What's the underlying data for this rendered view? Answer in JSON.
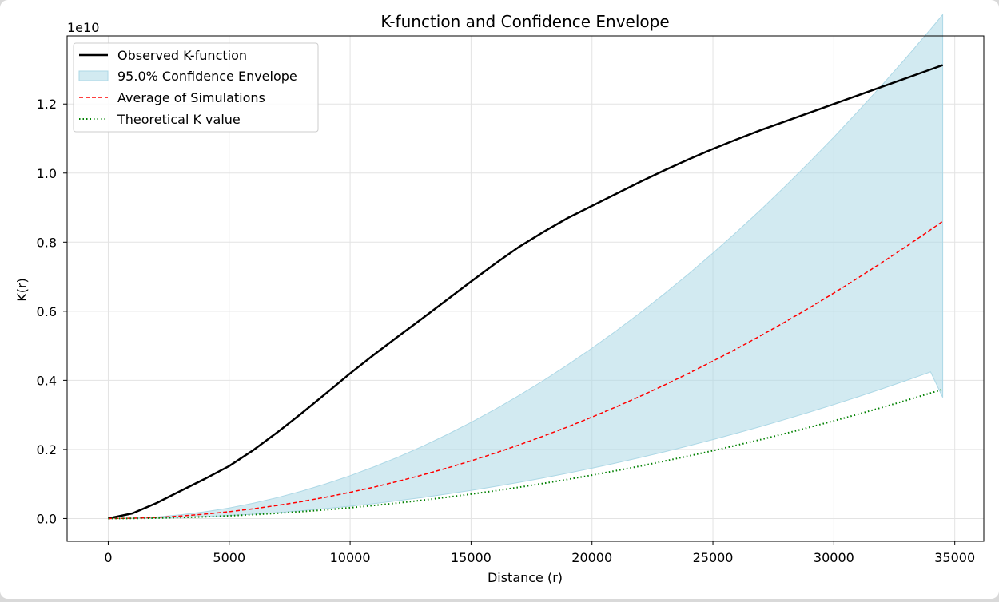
{
  "chart_data": {
    "type": "line",
    "title": "K-function and Confidence Envelope",
    "xlabel": "Distance (r)",
    "ylabel": "K(r)",
    "y_offset_label": "1e10",
    "y_scale_factor": 10000000000,
    "xlim": [
      -1700,
      36200
    ],
    "ylim": [
      -0.066,
      1.397
    ],
    "x_ticks": [
      0,
      5000,
      10000,
      15000,
      20000,
      25000,
      30000,
      35000
    ],
    "x_tick_labels": [
      "0",
      "5000",
      "10000",
      "15000",
      "20000",
      "25000",
      "30000",
      "35000"
    ],
    "y_ticks": [
      0.0,
      0.2,
      0.4,
      0.6,
      0.8,
      1.0,
      1.2
    ],
    "y_tick_labels": [
      "0.0",
      "0.2",
      "0.4",
      "0.6",
      "0.8",
      "1.0",
      "1.2"
    ],
    "grid": true,
    "legend_position": "top-left",
    "x": [
      0,
      1000,
      2000,
      3000,
      4000,
      5000,
      6000,
      7000,
      8000,
      9000,
      10000,
      11000,
      12000,
      13000,
      14000,
      15000,
      16000,
      17000,
      18000,
      19000,
      20000,
      21000,
      22000,
      23000,
      24000,
      25000,
      26000,
      27000,
      28000,
      29000,
      30000,
      31000,
      32000,
      33000,
      34000,
      34500
    ],
    "series": [
      {
        "name": "Observed K-function",
        "color": "#000000",
        "style": "solid",
        "values": [
          0.0,
          0.015,
          0.045,
          0.08,
          0.115,
          0.152,
          0.198,
          0.25,
          0.305,
          0.362,
          0.42,
          0.475,
          0.528,
          0.58,
          0.633,
          0.686,
          0.738,
          0.787,
          0.83,
          0.87,
          0.905,
          0.94,
          0.975,
          1.008,
          1.04,
          1.07,
          1.098,
          1.125,
          1.15,
          1.175,
          1.2,
          1.225,
          1.25,
          1.275,
          1.3,
          1.3125
        ]
      },
      {
        "name": "Average of Simulations",
        "color": "#ff0000",
        "style": "dashed",
        "values": [
          0.0,
          0.0008,
          0.003,
          0.0073,
          0.0128,
          0.0198,
          0.0282,
          0.038,
          0.0492,
          0.0618,
          0.0758,
          0.0911,
          0.108,
          0.1262,
          0.1459,
          0.167,
          0.1895,
          0.2134,
          0.2388,
          0.2655,
          0.2936,
          0.3232,
          0.3542,
          0.3866,
          0.4204,
          0.4556,
          0.4922,
          0.5302,
          0.5697,
          0.6105,
          0.6528,
          0.6965,
          0.7415,
          0.788,
          0.8359,
          0.8604
        ]
      },
      {
        "name": "Theoretical K value",
        "color": "#008000",
        "style": "dotted",
        "values": [
          0.0,
          0.0003,
          0.0013,
          0.0028,
          0.005,
          0.0079,
          0.0113,
          0.0154,
          0.0201,
          0.0254,
          0.0314,
          0.038,
          0.0452,
          0.0531,
          0.0616,
          0.0707,
          0.0804,
          0.0908,
          0.1018,
          0.1134,
          0.1257,
          0.1385,
          0.152,
          0.1662,
          0.181,
          0.1964,
          0.2124,
          0.229,
          0.2463,
          0.2642,
          0.2827,
          0.3019,
          0.3217,
          0.3421,
          0.3632,
          0.3739
        ]
      }
    ],
    "envelope": {
      "name": "95.0% Confidence Envelope",
      "color": "#add8e6",
      "confidence": "95.0%",
      "lower": [
        0.0,
        0.0003,
        0.0013,
        0.003,
        0.0055,
        0.0087,
        0.0126,
        0.0173,
        0.0227,
        0.0289,
        0.0358,
        0.0434,
        0.0518,
        0.0609,
        0.0708,
        0.0814,
        0.0928,
        0.1049,
        0.1178,
        0.1314,
        0.1457,
        0.1608,
        0.1766,
        0.1932,
        0.2105,
        0.2285,
        0.2473,
        0.2668,
        0.2871,
        0.3081,
        0.3299,
        0.3524,
        0.3756,
        0.3996,
        0.4244,
        0.3505
      ],
      "upper": [
        0.0,
        0.0012,
        0.0046,
        0.0107,
        0.0194,
        0.0306,
        0.0444,
        0.0606,
        0.0793,
        0.1004,
        0.124,
        0.15,
        0.1784,
        0.2092,
        0.2425,
        0.2782,
        0.3163,
        0.3568,
        0.3998,
        0.4452,
        0.493,
        0.5432,
        0.5959,
        0.651,
        0.7085,
        0.7684,
        0.8307,
        0.8955,
        0.9626,
        1.0322,
        1.1042,
        1.1786,
        1.2555,
        1.3347,
        1.4164,
        1.4584
      ]
    }
  }
}
